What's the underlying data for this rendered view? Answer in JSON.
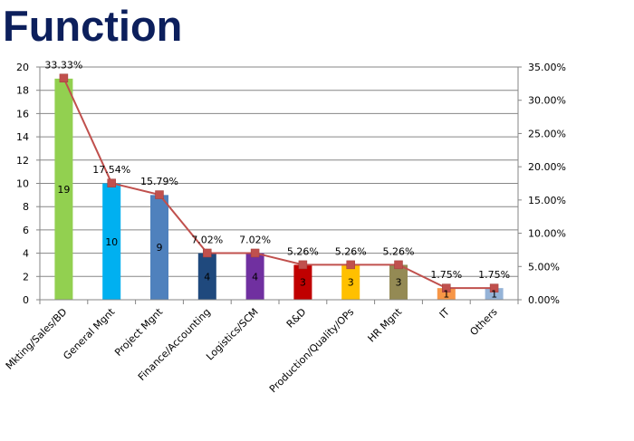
{
  "title": "Function",
  "chart_data": {
    "type": "bar",
    "categories": [
      "Mkting/Sales/BD",
      "General Mgnt",
      "Project Mgnt",
      "Finance/Accounting",
      "Logistics/SCM",
      "R&D",
      "Production/Quality/OPs",
      "HR Mgnt",
      "IT",
      "Others"
    ],
    "values": [
      19,
      10,
      9,
      4,
      4,
      3,
      3,
      3,
      1,
      1
    ],
    "value_labels": [
      "19",
      "10",
      "9",
      "4",
      "4",
      "3",
      "3",
      "3",
      "1",
      "1"
    ],
    "bar_colors": [
      "#92d050",
      "#00b0f0",
      "#4f81bd",
      "#1f497d",
      "#7030a0",
      "#c00000",
      "#ffc000",
      "#948a54",
      "#f79646",
      "#95b3d7"
    ],
    "line_values": [
      33.33,
      17.54,
      15.79,
      7.02,
      7.02,
      5.26,
      5.26,
      5.26,
      1.75,
      1.75
    ],
    "line_labels": [
      "33.33%",
      "17.54%",
      "15.79%",
      "7.02%",
      "7.02%",
      "5.26%",
      "5.26%",
      "5.26%",
      "1.75%",
      "1.75%"
    ],
    "line_color": "#c0504d",
    "y_left_range": [
      0,
      20
    ],
    "y_left_ticks": [
      "0",
      "2",
      "4",
      "6",
      "8",
      "10",
      "12",
      "14",
      "16",
      "18",
      "20"
    ],
    "y_right_range": [
      0,
      35
    ],
    "y_right_ticks": [
      "0.00%",
      "5.00%",
      "10.00%",
      "15.00%",
      "20.00%",
      "25.00%",
      "30.00%",
      "35.00%"
    ],
    "grid": true
  }
}
